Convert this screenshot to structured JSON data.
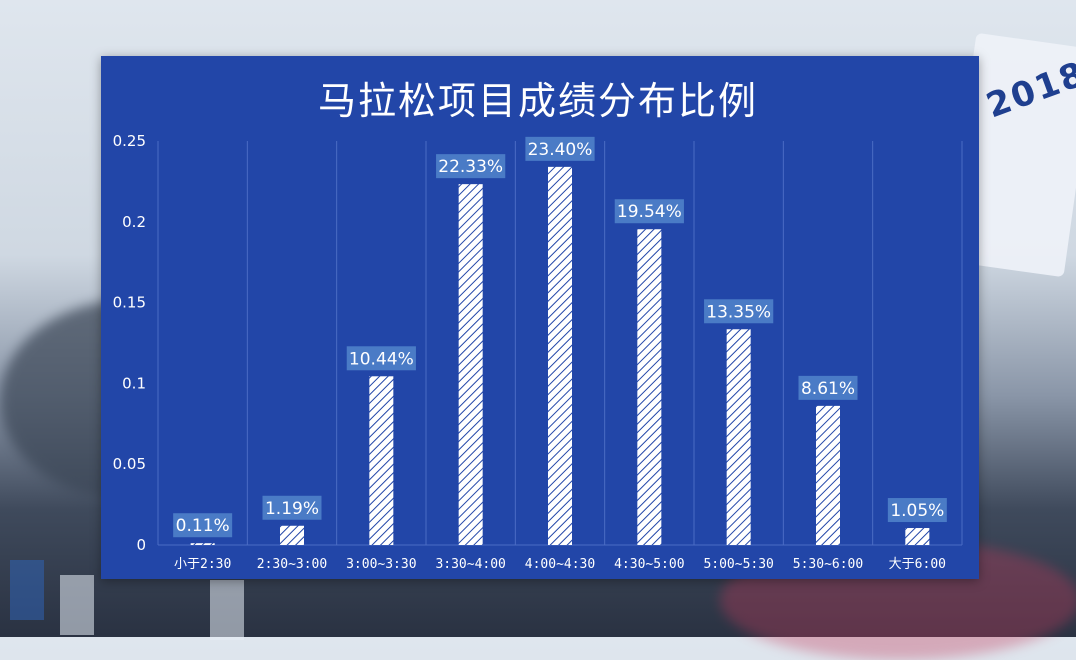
{
  "chart_data": {
    "type": "bar",
    "title": "马拉松项目成绩分布比例",
    "categories": [
      "小于2:30",
      "2:30~3:00",
      "3:00~3:30",
      "3:30~4:00",
      "4:00~4:30",
      "4:30~5:00",
      "5:00~5:30",
      "5:30~6:00",
      "大于6:00"
    ],
    "values": [
      0.0011,
      0.0119,
      0.1044,
      0.2233,
      0.234,
      0.1954,
      0.1335,
      0.0861,
      0.0105
    ],
    "data_labels": [
      "0.11%",
      "1.19%",
      "10.44%",
      "22.33%",
      "23.40%",
      "19.54%",
      "13.35%",
      "8.61%",
      "1.05%"
    ],
    "yticks": [
      "0",
      "0.05",
      "0.1",
      "0.15",
      "0.2",
      "0.25"
    ],
    "ylim": [
      0,
      0.25
    ],
    "xlabel": "",
    "ylabel": "",
    "grid": "vertical",
    "legend": "none",
    "colors": {
      "panel": "#2246a8",
      "bar_fill": "#ffffff",
      "bar_hatch": "#2246a8",
      "label_box": "#4a7bc6",
      "grid": "#4b6cc4"
    }
  }
}
